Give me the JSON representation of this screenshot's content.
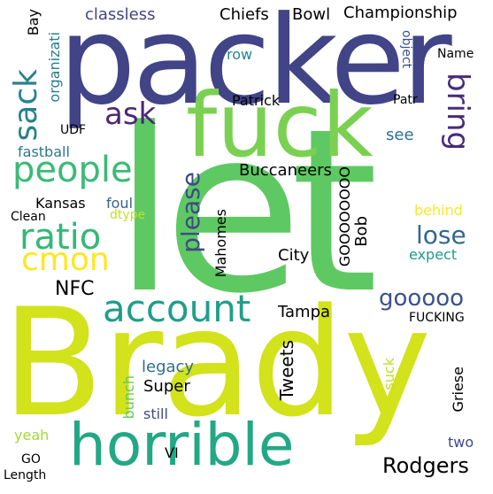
{
  "words": [
    {
      "id": "let",
      "text": "let",
      "color": "#5ec962"
    },
    {
      "id": "brady",
      "text": "Brady",
      "color": "#d2e21b"
    },
    {
      "id": "packer",
      "text": "packer",
      "color": "#414487"
    },
    {
      "id": "fuck",
      "text": "fuck",
      "color": "#7ad151"
    },
    {
      "id": "horrible",
      "text": "horrible",
      "color": "#22a884"
    },
    {
      "id": "account",
      "text": "account",
      "color": "#1f9e89"
    },
    {
      "id": "ratio",
      "text": "ratio",
      "color": "#35b779"
    },
    {
      "id": "cmon",
      "text": "cmon",
      "color": "#fde725"
    },
    {
      "id": "people",
      "text": "people",
      "color": "#3aba76"
    },
    {
      "id": "ask",
      "text": "ask",
      "color": "#482878"
    },
    {
      "id": "sack",
      "text": "sack",
      "color": "#26828e"
    },
    {
      "id": "bring",
      "text": "bring",
      "color": "#472c7a"
    },
    {
      "id": "please",
      "text": "please",
      "color": "#3e4a89"
    },
    {
      "id": "lose",
      "text": "lose",
      "color": "#31688e"
    },
    {
      "id": "gooooo",
      "text": "gooooo",
      "color": "#3b528b"
    },
    {
      "id": "rodgers",
      "text": "Rodgers",
      "color": "#2c728e"
    },
    {
      "id": "nfc",
      "text": "NFC",
      "color": "#29af7f"
    },
    {
      "id": "tweets",
      "text": "Tweets",
      "color": "#46327e"
    },
    {
      "id": "championship",
      "text": "Championship",
      "color": "#277f8e"
    },
    {
      "id": "bowl",
      "text": "Bowl",
      "color": "#3e4989"
    },
    {
      "id": "chiefs",
      "text": "Chiefs",
      "color": "#a8db34"
    },
    {
      "id": "classless",
      "text": "classless",
      "color": "#414487"
    },
    {
      "id": "buccaneers",
      "text": "Buccaneers",
      "color": "#addc30"
    },
    {
      "id": "mahomes",
      "text": "Mahomes",
      "color": "#3e4c8a"
    },
    {
      "id": "goooooooo",
      "text": "GOOOOOOOO",
      "color": "#6ece58"
    },
    {
      "id": "bob",
      "text": "Bob",
      "color": "#c8e020"
    },
    {
      "id": "city",
      "text": "City",
      "color": "#3f4788"
    },
    {
      "id": "kansas",
      "text": "Kansas",
      "color": "#482576"
    },
    {
      "id": "foul",
      "text": "foul",
      "color": "#34618d"
    },
    {
      "id": "dtype",
      "text": "dtype",
      "color": "#c2df23"
    },
    {
      "id": "clean",
      "text": "Clean",
      "color": "#4ac16d"
    },
    {
      "id": "fastball",
      "text": "fastball",
      "color": "#2a788e"
    },
    {
      "id": "udf",
      "text": "UDF",
      "color": "#30698e"
    },
    {
      "id": "organizati",
      "text": "organizati",
      "color": "#287d8e"
    },
    {
      "id": "bay",
      "text": "Bay",
      "color": "#8fd744"
    },
    {
      "id": "row",
      "text": "row",
      "color": "#25858e"
    },
    {
      "id": "patrick",
      "text": "Patrick",
      "color": "#dde318"
    },
    {
      "id": "patr",
      "text": "Patr",
      "color": "#375b8d"
    },
    {
      "id": "name",
      "text": "Name",
      "color": "#b5de2b"
    },
    {
      "id": "object",
      "text": "object",
      "color": "#3b528b"
    },
    {
      "id": "see",
      "text": "see",
      "color": "#2c718e"
    },
    {
      "id": "behind",
      "text": "behind",
      "color": "#fde725"
    },
    {
      "id": "expect",
      "text": "expect",
      "color": "#1f9a8a"
    },
    {
      "id": "fucking",
      "text": "FUCKING",
      "color": "#2d708e"
    },
    {
      "id": "tampa",
      "text": "Tampa",
      "color": "#2fb47c"
    },
    {
      "id": "legacy",
      "text": "legacy",
      "color": "#2d708e"
    },
    {
      "id": "super",
      "text": "Super",
      "color": "#2c728e"
    },
    {
      "id": "still",
      "text": "still",
      "color": "#3e4c8a"
    },
    {
      "id": "bunch",
      "text": "bunch",
      "color": "#5ec962"
    },
    {
      "id": "suck",
      "text": "suck",
      "color": "#c0df25"
    },
    {
      "id": "griese",
      "text": "Griese",
      "color": "#3dbc74"
    },
    {
      "id": "two",
      "text": "two",
      "color": "#3e4a89"
    },
    {
      "id": "yeah",
      "text": "yeah",
      "color": "#a2da37"
    },
    {
      "id": "go",
      "text": "GO",
      "color": "#2c738e"
    },
    {
      "id": "vi",
      "text": "VI",
      "color": "#3e4a89"
    },
    {
      "id": "length",
      "text": "Length",
      "color": "#2a788e"
    }
  ]
}
